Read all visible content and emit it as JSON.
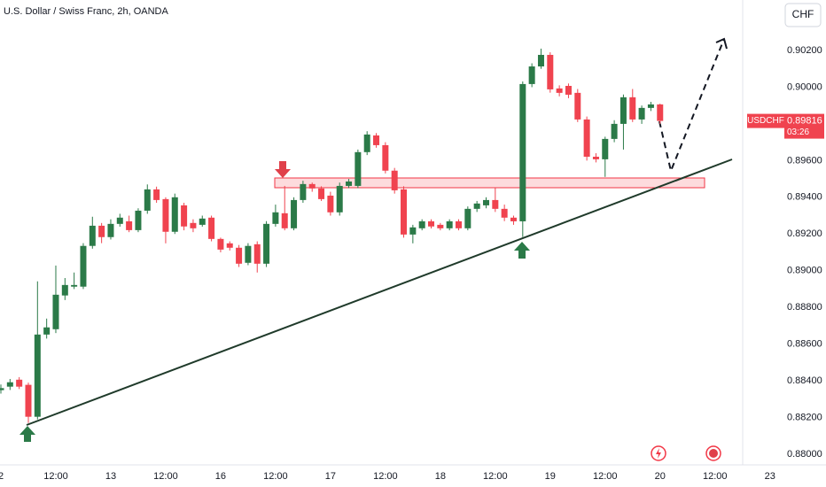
{
  "chart_data": {
    "type": "candlestick",
    "title": "U.S. Dollar / Swiss Franc, 2h, OANDA",
    "currency": "CHF",
    "categories": [
      "2",
      null,
      null,
      null,
      null,
      null,
      "12:00",
      null,
      null,
      null,
      null,
      null,
      "13",
      null,
      null,
      null,
      null,
      null,
      "12:00",
      null,
      null,
      null,
      null,
      null,
      "16",
      null,
      null,
      null,
      null,
      null,
      "12:00",
      null,
      null,
      null,
      null,
      null,
      "17",
      null,
      null,
      null,
      null,
      null,
      "12:00",
      null,
      null,
      null,
      null,
      null,
      "18",
      null,
      null,
      null,
      null,
      null,
      "12:00",
      null,
      null,
      null,
      null,
      null,
      "19",
      null,
      null,
      null,
      null,
      null,
      "12:00",
      null,
      null,
      null,
      null,
      null,
      "20",
      null,
      null,
      null,
      null,
      null,
      "12:00",
      null,
      null,
      null,
      null,
      null,
      "23"
    ],
    "series": [
      {
        "name": "USDCHF",
        "up_color": "#2b7a48",
        "down_color": "#f0434f",
        "open": [
          0.88349,
          0.88368,
          0.88406,
          0.88378,
          0.88204,
          0.88652,
          0.88681,
          0.88865,
          0.88913,
          0.88913,
          0.89135,
          0.89245,
          0.89183,
          0.89255,
          0.89269,
          0.89221,
          0.89327,
          0.89443,
          0.8939,
          0.89212,
          0.89356,
          0.8926,
          0.8925,
          0.89289,
          0.89173,
          0.89149,
          0.89125,
          0.89043,
          0.89144,
          0.89038,
          0.89255,
          0.89313,
          0.89231,
          0.89385,
          0.89472,
          0.89448,
          0.89409,
          0.89318,
          0.89462,
          0.89462,
          0.89646,
          0.89737,
          0.89684,
          0.89545,
          0.89443,
          0.89197,
          0.89231,
          0.89269,
          0.8925,
          0.89231,
          0.89269,
          0.89231,
          0.89337,
          0.89356,
          0.89385,
          0.89337,
          0.89289,
          0.89269,
          0.90017,
          0.90113,
          0.90176,
          0.89993,
          0.90007,
          0.89969,
          0.89824,
          0.89621,
          0.89607,
          0.89718,
          0.898,
          0.89945,
          0.89824,
          0.89887,
          0.89906,
          null,
          null,
          null,
          null,
          null,
          null,
          null,
          null,
          null,
          null,
          null,
          null
        ],
        "high": [
          0.8838,
          0.8841,
          0.8842,
          0.8839,
          0.88942,
          0.88739,
          0.89028,
          0.8896,
          0.8899,
          0.8915,
          0.89294,
          0.8926,
          0.8928,
          0.8931,
          0.893,
          0.8934,
          0.8947,
          0.89458,
          0.894,
          0.8942,
          0.8937,
          0.8928,
          0.893,
          0.893,
          0.8918,
          0.8916,
          0.8914,
          0.8915,
          0.8916,
          0.8927,
          0.8936,
          0.89462,
          0.894,
          0.8949,
          0.8948,
          0.8946,
          0.8943,
          0.8948,
          0.895,
          0.8966,
          0.8976,
          0.8975,
          0.897,
          0.8956,
          0.8946,
          0.8925,
          0.8928,
          0.8928,
          0.8926,
          0.8928,
          0.8928,
          0.8935,
          0.8938,
          0.894,
          0.8945,
          0.8936,
          0.893,
          0.90031,
          0.9013,
          0.9021,
          0.9019,
          0.9001,
          0.9002,
          0.8999,
          0.8984,
          0.8964,
          0.8973,
          0.8982,
          0.8996,
          0.8999,
          0.899,
          0.8992,
          0.8991,
          null,
          null,
          null,
          null,
          null,
          null,
          null,
          null,
          null,
          null,
          null,
          null
        ],
        "low": [
          0.8833,
          0.8835,
          0.88355,
          0.8817,
          0.8819,
          0.8863,
          0.8866,
          0.8884,
          0.889,
          0.889,
          0.8912,
          0.8915,
          0.8917,
          0.8924,
          0.8921,
          0.8921,
          0.8931,
          0.8937,
          0.89149,
          0.892,
          0.8922,
          0.8921,
          0.8924,
          0.8916,
          0.891,
          0.8911,
          0.8902,
          0.8903,
          0.8899,
          0.8902,
          0.8924,
          0.8922,
          0.8922,
          0.8937,
          0.8943,
          0.8938,
          0.893,
          0.893,
          0.8945,
          0.8945,
          0.8963,
          0.8967,
          0.8953,
          0.8942,
          0.8918,
          0.89149,
          0.8922,
          0.8923,
          0.8922,
          0.8922,
          0.8922,
          0.8922,
          0.8932,
          0.8934,
          0.8932,
          0.8927,
          0.8925,
          0.89183,
          0.9,
          0.901,
          0.8997,
          0.8995,
          0.8994,
          0.8981,
          0.896,
          0.8959,
          0.89511,
          0.897,
          0.8966,
          0.8981,
          0.898,
          0.8987,
          0.898,
          null,
          null,
          null,
          null,
          null,
          null,
          null,
          null,
          null,
          null,
          null,
          null
        ],
        "close": [
          0.8836,
          0.88392,
          0.88368,
          0.88204,
          0.88652,
          0.88691,
          0.88869,
          0.88922,
          0.88922,
          0.89135,
          0.89245,
          0.89183,
          0.89255,
          0.89289,
          0.89221,
          0.89327,
          0.89443,
          0.89385,
          0.89212,
          0.894,
          0.89241,
          0.89231,
          0.89284,
          0.89173,
          0.89115,
          0.89125,
          0.89038,
          0.89135,
          0.89038,
          0.89255,
          0.89318,
          0.89231,
          0.89385,
          0.89472,
          0.89448,
          0.8939,
          0.89318,
          0.89462,
          0.89486,
          0.89646,
          0.89742,
          0.89684,
          0.89545,
          0.89438,
          0.89197,
          0.89236,
          0.89269,
          0.89241,
          0.89231,
          0.89269,
          0.89231,
          0.89337,
          0.89366,
          0.89385,
          0.89337,
          0.89289,
          0.89269,
          0.90017,
          0.90113,
          0.90176,
          0.89988,
          0.89969,
          0.89959,
          0.89824,
          0.89621,
          0.89607,
          0.89718,
          0.898,
          0.89945,
          0.89824,
          0.89887,
          0.89906,
          0.89816,
          null,
          null,
          null,
          null,
          null,
          null,
          null,
          null,
          null,
          null,
          null,
          null
        ]
      }
    ],
    "last_price": 0.89816,
    "countdown": "03:26",
    "ylim": [
      0.87966,
      0.90475
    ],
    "yticks": [
      {
        "value": 0.88,
        "label": "0.88000"
      },
      {
        "value": 0.882,
        "label": "0.88200"
      },
      {
        "value": 0.884,
        "label": "0.88400"
      },
      {
        "value": 0.886,
        "label": "0.88600"
      },
      {
        "value": 0.888,
        "label": "0.88800"
      },
      {
        "value": 0.89,
        "label": "0.89000"
      },
      {
        "value": 0.892,
        "label": "0.89200"
      },
      {
        "value": 0.894,
        "label": "0.89400"
      },
      {
        "value": 0.896,
        "label": "0.89600"
      },
      {
        "value": 0.898,
        "label": "0.89800"
      },
      {
        "value": 0.9,
        "label": "0.90000"
      },
      {
        "value": 0.902,
        "label": "0.90200"
      }
    ],
    "grid": false
  }
}
